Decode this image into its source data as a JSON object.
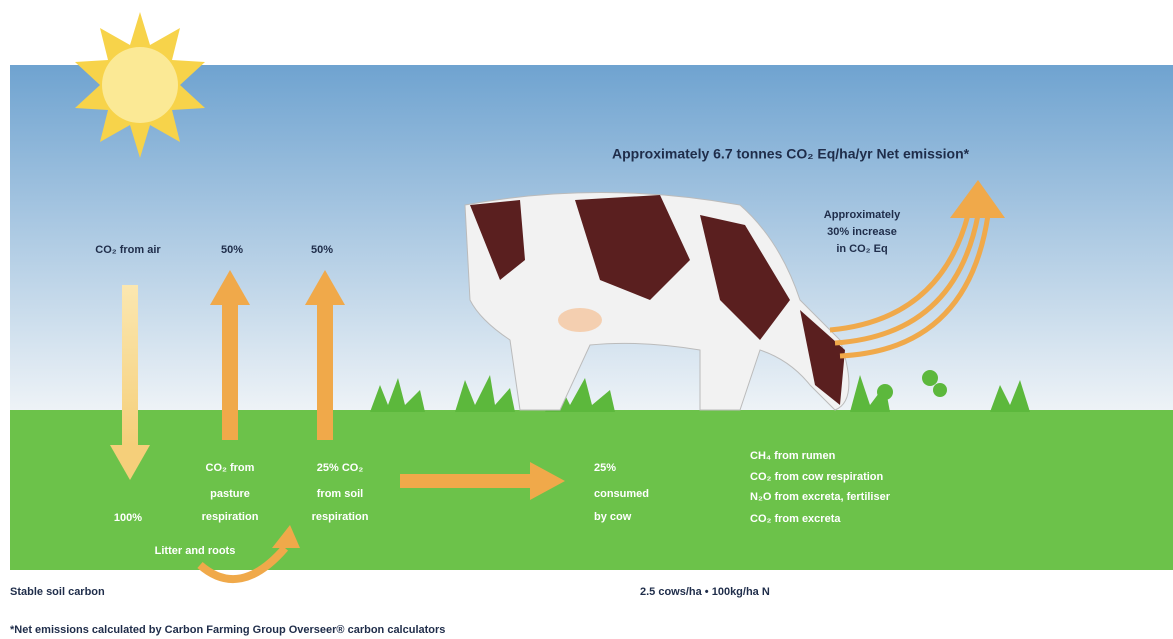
{
  "sky": {
    "net_emission": "Approximately 6.7 tonnes CO₂ Eq/ha/yr Net emission*",
    "increase_note": [
      "Approximately",
      "30% increase",
      "in CO₂ Eq"
    ],
    "co2_from_air": "CO₂ from air",
    "pasture_share": "50%",
    "soil_share": "50%"
  },
  "ground": {
    "air_share": "100%",
    "pasture_respiration": [
      "CO₂ from",
      "pasture",
      "respiration"
    ],
    "soil_respiration": [
      "25% CO₂",
      "from soil",
      "respiration"
    ],
    "consumed": [
      "25%",
      "consumed",
      "by cow"
    ],
    "cow_sources": [
      "CH₄ from rumen",
      "CO₂ from cow respiration",
      "N₂O from excreta, fertiliser",
      "CO₂ from excreta"
    ],
    "litter": "Litter and roots"
  },
  "footer": {
    "stable_soil": "Stable soil carbon",
    "stocking": "2.5 cows/ha • 100kg/ha N",
    "footnote": "*Net emissions calculated by Carbon Farming Group Overseer® carbon calculators"
  }
}
